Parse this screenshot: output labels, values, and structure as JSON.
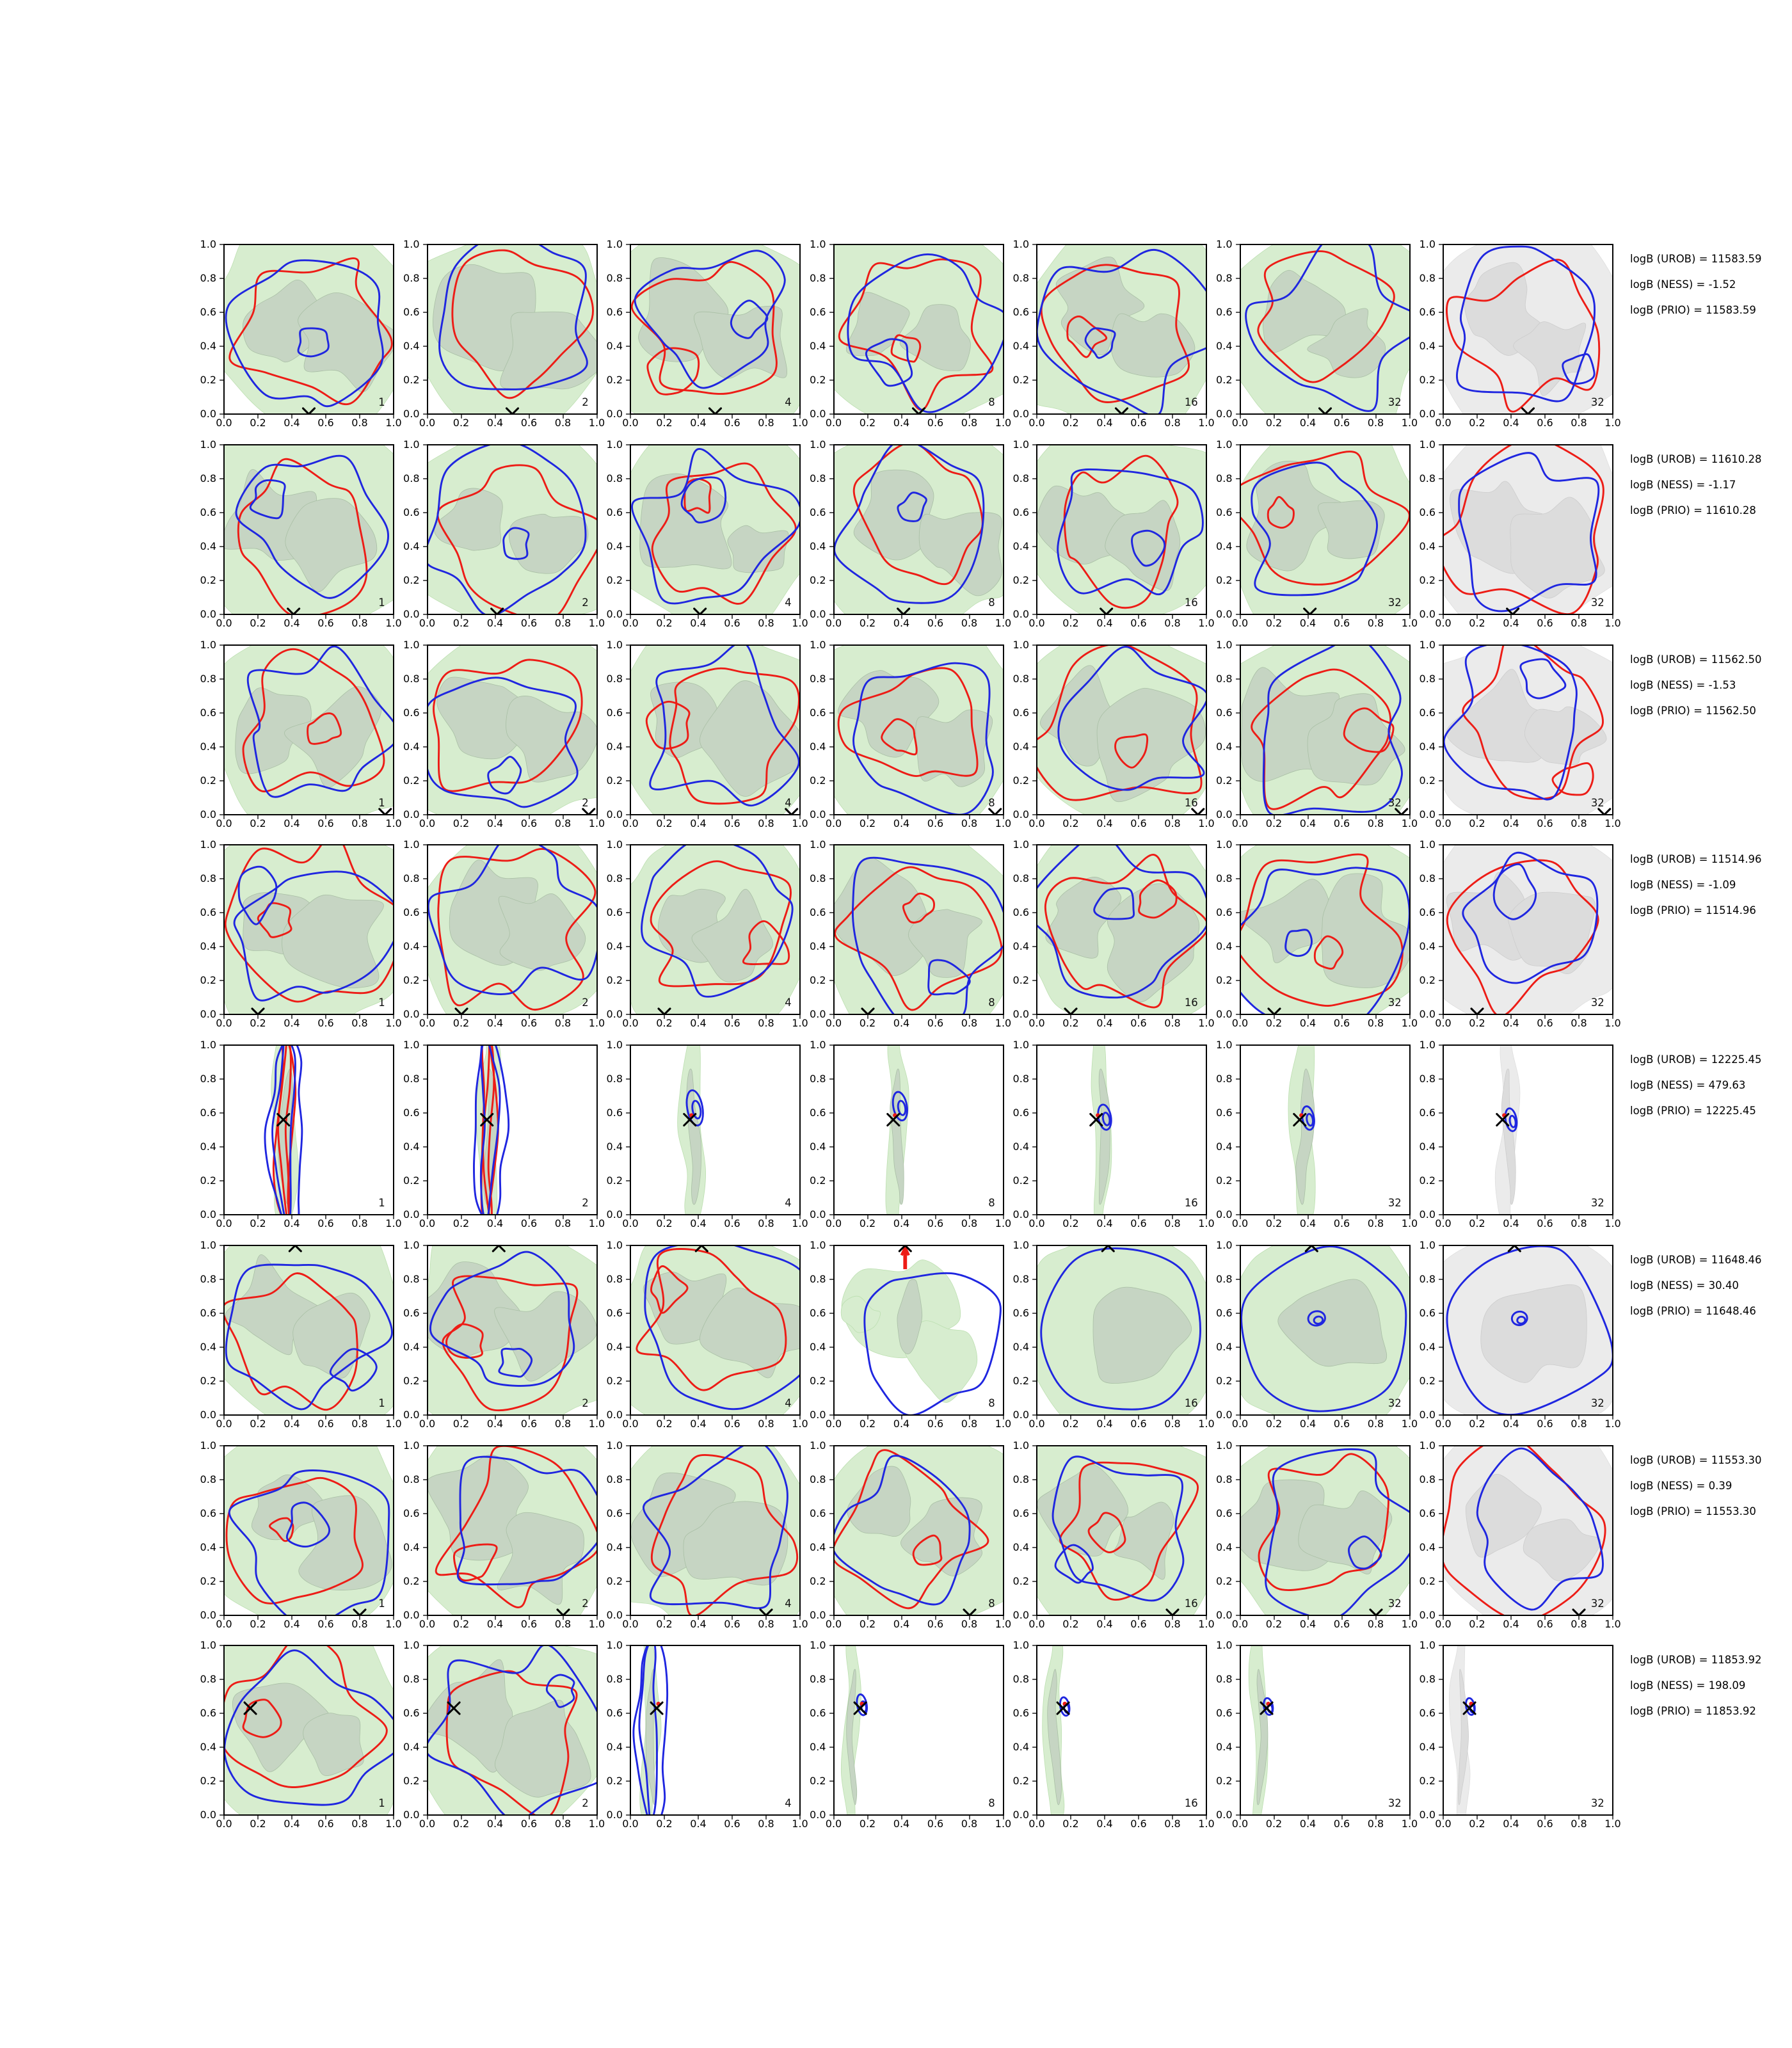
{
  "figure": {
    "axis_ticks": [
      "0.0",
      "0.2",
      "0.4",
      "0.6",
      "0.8",
      "1.0"
    ],
    "colors": {
      "contour_red": "#ed1c16",
      "contour_blue": "#1f26e0",
      "marker_black": "#000000",
      "green_fill_light": "#d7edcf",
      "green_fill_dark": "#c6d5c3",
      "gray_fill_light": "#ebebeb",
      "gray_fill_dark": "#dcdcdc"
    },
    "rows": [
      {
        "ann": [
          "logB (UROB) = 11583.59",
          "logB (NESS) = -1.52",
          "logB (PRIO) = 11583.59"
        ],
        "marker": {
          "x": 0.5,
          "y": 0.0
        },
        "panels": [
          {
            "label": "1",
            "palette": "green",
            "style": "spread"
          },
          {
            "label": "2",
            "palette": "green",
            "style": "spread"
          },
          {
            "label": "4",
            "palette": "green",
            "style": "spread"
          },
          {
            "label": "8",
            "palette": "green",
            "style": "spread"
          },
          {
            "label": "16",
            "palette": "green",
            "style": "spread"
          },
          {
            "label": "32",
            "palette": "green",
            "style": "spread"
          },
          {
            "label": "32",
            "palette": "gray",
            "style": "spread"
          }
        ]
      },
      {
        "ann": [
          "logB (UROB) = 11610.28",
          "logB (NESS) = -1.17",
          "logB (PRIO) = 11610.28"
        ],
        "marker": {
          "x": 0.41,
          "y": 0.0
        },
        "panels": [
          {
            "label": "1",
            "palette": "green",
            "style": "spread"
          },
          {
            "label": "2",
            "palette": "green",
            "style": "spread"
          },
          {
            "label": "4",
            "palette": "green",
            "style": "spread"
          },
          {
            "label": "8",
            "palette": "green",
            "style": "spread"
          },
          {
            "label": "16",
            "palette": "green",
            "style": "spread"
          },
          {
            "label": "32",
            "palette": "green",
            "style": "spread"
          },
          {
            "label": "32",
            "palette": "gray",
            "style": "spread"
          }
        ]
      },
      {
        "ann": [
          "logB (UROB) = 11562.50",
          "logB (NESS) = -1.53",
          "logB (PRIO) = 11562.50"
        ],
        "marker": {
          "x": 0.95,
          "y": 0.0
        },
        "panels": [
          {
            "label": "1",
            "palette": "green",
            "style": "spread"
          },
          {
            "label": "2",
            "palette": "green",
            "style": "spread"
          },
          {
            "label": "4",
            "palette": "green",
            "style": "spread"
          },
          {
            "label": "8",
            "palette": "green",
            "style": "spread"
          },
          {
            "label": "16",
            "palette": "green",
            "style": "spread"
          },
          {
            "label": "32",
            "palette": "green",
            "style": "spread"
          },
          {
            "label": "32",
            "palette": "gray",
            "style": "spread"
          }
        ]
      },
      {
        "ann": [
          "logB (UROB) = 11514.96",
          "logB (NESS) = -1.09",
          "logB (PRIO) = 11514.96"
        ],
        "marker": {
          "x": 0.2,
          "y": 0.0
        },
        "panels": [
          {
            "label": "1",
            "palette": "green",
            "style": "spread"
          },
          {
            "label": "2",
            "palette": "green",
            "style": "spread"
          },
          {
            "label": "4",
            "palette": "green",
            "style": "spread"
          },
          {
            "label": "8",
            "palette": "green",
            "style": "spread"
          },
          {
            "label": "16",
            "palette": "green",
            "style": "spread"
          },
          {
            "label": "32",
            "palette": "green",
            "style": "spread"
          },
          {
            "label": "32",
            "palette": "gray",
            "style": "spread"
          }
        ]
      },
      {
        "ann": [
          "logB (UROB) = 12225.45",
          "logB (NESS) = 479.63",
          "logB (PRIO) = 12225.45"
        ],
        "marker": {
          "x": 0.35,
          "y": 0.56
        },
        "panels": [
          {
            "label": "1",
            "palette": "green",
            "style": "narrowlines",
            "contours": [
              "red",
              "blue"
            ],
            "band_x": 0.36,
            "band_w": 0.07
          },
          {
            "label": "2",
            "palette": "green",
            "style": "narrowlines",
            "contours": [
              "red",
              "blue"
            ],
            "band_x": 0.36,
            "band_w": 0.06
          },
          {
            "label": "4",
            "palette": "green",
            "style": "narrowdot",
            "band_x": 0.36,
            "band_w": 0.06,
            "ellipse": {
              "x": 0.38,
              "y": 0.63,
              "rx": 0.045,
              "ry": 0.105
            },
            "red_dot": true
          },
          {
            "label": "8",
            "palette": "green",
            "style": "narrowdot",
            "band_x": 0.37,
            "band_w": 0.055,
            "ellipse": {
              "x": 0.39,
              "y": 0.64,
              "rx": 0.04,
              "ry": 0.085
            },
            "red_dot": true
          },
          {
            "label": "16",
            "palette": "green",
            "style": "narrowdot",
            "band_x": 0.38,
            "band_w": 0.05,
            "ellipse": {
              "x": 0.4,
              "y": 0.575,
              "rx": 0.037,
              "ry": 0.075
            },
            "red_dot": true
          },
          {
            "label": "32",
            "palette": "green",
            "style": "narrowdot",
            "band_x": 0.37,
            "band_w": 0.075,
            "ellipse": {
              "x": 0.4,
              "y": 0.57,
              "rx": 0.034,
              "ry": 0.07
            },
            "red_dot": true
          },
          {
            "label": "32",
            "palette": "gray",
            "style": "narrowdot",
            "band_x": 0.38,
            "band_w": 0.05,
            "ellipse": {
              "x": 0.4,
              "y": 0.56,
              "rx": 0.032,
              "ry": 0.068
            },
            "red_dot": true
          }
        ]
      },
      {
        "ann": [
          "logB (UROB) = 11648.46",
          "logB (NESS) = 30.40",
          "logB (PRIO) = 11648.46"
        ],
        "marker": {
          "x": 0.42,
          "y": 1.0
        },
        "panels": [
          {
            "label": "1",
            "palette": "green",
            "style": "spread"
          },
          {
            "label": "2",
            "palette": "green",
            "style": "spread"
          },
          {
            "label": "4",
            "palette": "green",
            "style": "spread"
          },
          {
            "label": "8",
            "palette": "green",
            "style": "blueonly",
            "contours": [
              "blue"
            ],
            "red_spike": true
          },
          {
            "label": "16",
            "palette": "green",
            "style": "bluebox",
            "contours": [
              "blue"
            ]
          },
          {
            "label": "32",
            "palette": "green",
            "style": "bluebox",
            "contours": [
              "blue"
            ],
            "ellipse": {
              "x": 0.45,
              "y": 0.57,
              "rx": 0.05,
              "ry": 0.042
            }
          },
          {
            "label": "32",
            "palette": "gray",
            "style": "bluebox",
            "contours": [
              "blue"
            ],
            "ellipse": {
              "x": 0.45,
              "y": 0.57,
              "rx": 0.045,
              "ry": 0.04
            }
          }
        ]
      },
      {
        "ann": [
          "logB (UROB) = 11553.30",
          "logB (NESS) = 0.39",
          "logB (PRIO) = 11553.30"
        ],
        "marker": {
          "x": 0.8,
          "y": 0.0
        },
        "panels": [
          {
            "label": "1",
            "palette": "green",
            "style": "spread"
          },
          {
            "label": "2",
            "palette": "green",
            "style": "spread"
          },
          {
            "label": "4",
            "palette": "green",
            "style": "spread"
          },
          {
            "label": "8",
            "palette": "green",
            "style": "spread"
          },
          {
            "label": "16",
            "palette": "green",
            "style": "spread"
          },
          {
            "label": "32",
            "palette": "green",
            "style": "spread"
          },
          {
            "label": "32",
            "palette": "gray",
            "style": "spread"
          }
        ]
      },
      {
        "ann": [
          "logB (UROB) = 11853.92",
          "logB (NESS) = 198.09",
          "logB (PRIO) = 11853.92"
        ],
        "marker": {
          "x": 0.155,
          "y": 0.63
        },
        "panels": [
          {
            "label": "1",
            "palette": "green",
            "style": "spread"
          },
          {
            "label": "2",
            "palette": "green",
            "style": "spread"
          },
          {
            "label": "4",
            "palette": "green",
            "style": "narrowlines",
            "contours": [
              "blue"
            ],
            "band_x": 0.115,
            "band_w": 0.045,
            "red_dot": true
          },
          {
            "label": "8",
            "palette": "green",
            "style": "narrowdot",
            "band_x": 0.1,
            "band_w": 0.04,
            "ellipse": {
              "x": 0.165,
              "y": 0.65,
              "rx": 0.028,
              "ry": 0.062
            },
            "red_dot": true
          },
          {
            "label": "16",
            "palette": "green",
            "style": "narrowdot",
            "band_x": 0.1,
            "band_w": 0.05,
            "ellipse": {
              "x": 0.165,
              "y": 0.64,
              "rx": 0.026,
              "ry": 0.055
            },
            "red_dot": true
          },
          {
            "label": "32",
            "palette": "green",
            "style": "narrowdot",
            "band_x": 0.11,
            "band_w": 0.045,
            "ellipse": {
              "x": 0.165,
              "y": 0.64,
              "rx": 0.026,
              "ry": 0.05
            },
            "red_dot": true
          },
          {
            "label": "32",
            "palette": "gray",
            "style": "narrowdot",
            "band_x": 0.1,
            "band_w": 0.04,
            "ellipse": {
              "x": 0.16,
              "y": 0.64,
              "rx": 0.025,
              "ry": 0.05
            },
            "red_dot": true
          }
        ]
      }
    ]
  },
  "chart_data": {
    "type": "heatmap",
    "subtype": "grid-of-2d-density-contour-subplots",
    "grid": {
      "rows": 8,
      "cols": 7
    },
    "column_labels": [
      "1",
      "2",
      "4",
      "8",
      "16",
      "32",
      "32"
    ],
    "x_range": [
      0.0,
      1.0
    ],
    "y_range": [
      0.0,
      1.0
    ],
    "x_ticks": [
      0.0,
      0.2,
      0.4,
      0.6,
      0.8,
      1.0
    ],
    "y_ticks": [
      0.0,
      0.2,
      0.4,
      0.6,
      0.8,
      1.0
    ],
    "legend_position": "none",
    "grid_lines": false,
    "series_colors": {
      "filled_density": "green (last column gray)",
      "contour_a": "red",
      "contour_b": "blue",
      "truth_marker": "black x"
    },
    "rows": [
      {
        "logB_UROB": 11583.59,
        "logB_NESS": -1.52,
        "logB_PRIO": 11583.59,
        "truth_marker": {
          "x": 0.5,
          "y": 0.0
        }
      },
      {
        "logB_UROB": 11610.28,
        "logB_NESS": -1.17,
        "logB_PRIO": 11610.28,
        "truth_marker": {
          "x": 0.41,
          "y": 0.0
        }
      },
      {
        "logB_UROB": 11562.5,
        "logB_NESS": -1.53,
        "logB_PRIO": 11562.5,
        "truth_marker": {
          "x": 0.95,
          "y": 0.0
        }
      },
      {
        "logB_UROB": 11514.96,
        "logB_NESS": -1.09,
        "logB_PRIO": 11514.96,
        "truth_marker": {
          "x": 0.2,
          "y": 0.0
        }
      },
      {
        "logB_UROB": 12225.45,
        "logB_NESS": 479.63,
        "logB_PRIO": 12225.45,
        "truth_marker": {
          "x": 0.35,
          "y": 0.56
        }
      },
      {
        "logB_UROB": 11648.46,
        "logB_NESS": 30.4,
        "logB_PRIO": 11648.46,
        "truth_marker": {
          "x": 0.42,
          "y": 1.0
        }
      },
      {
        "logB_UROB": 11553.3,
        "logB_NESS": 0.39,
        "logB_PRIO": 11553.3,
        "truth_marker": {
          "x": 0.8,
          "y": 0.0
        }
      },
      {
        "logB_UROB": 11853.92,
        "logB_NESS": 198.09,
        "logB_PRIO": 11853.92,
        "truth_marker": {
          "x": 0.155,
          "y": 0.63
        }
      }
    ]
  }
}
